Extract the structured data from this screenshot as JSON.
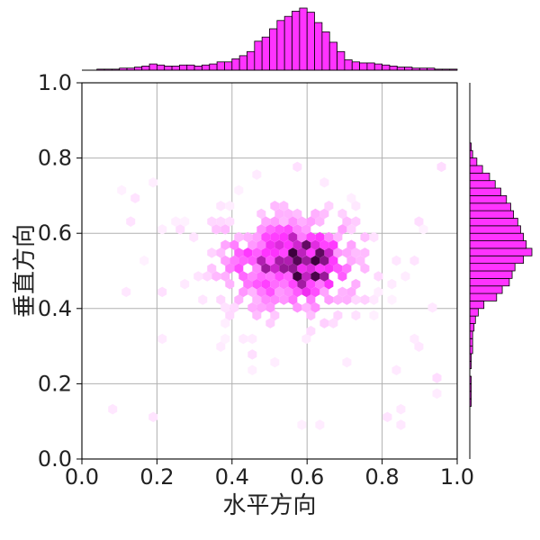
{
  "chart_data": {
    "type": "heatmap",
    "subtype": "hexbin joint plot with marginal histograms",
    "xlabel": "水平方向",
    "ylabel": "垂直方向",
    "xlim": [
      0.0,
      1.0
    ],
    "ylim": [
      0.0,
      1.0
    ],
    "x_ticks": [
      "0.0",
      "0.2",
      "0.4",
      "0.6",
      "0.8",
      "1.0"
    ],
    "y_ticks": [
      "0.0",
      "0.2",
      "0.4",
      "0.6",
      "0.8",
      "1.0"
    ],
    "grid": true,
    "color": "#ff33ff",
    "dark_color": "#3d003d",
    "hexbin": {
      "x_center": 0.55,
      "y_center": 0.52,
      "peak_x": 0.6,
      "peak_y": 0.53,
      "x_spread": 0.13,
      "y_spread": 0.09,
      "x_range": [
        0.07,
        0.97
      ],
      "y_range": [
        0.07,
        0.79
      ]
    },
    "top_histogram": {
      "bin_start": 0.0,
      "bin_width": 0.02,
      "counts": [
        0,
        0,
        1,
        1,
        1,
        2,
        2,
        3,
        4,
        6,
        5,
        4,
        4,
        5,
        5,
        4,
        5,
        6,
        8,
        8,
        11,
        14,
        18,
        28,
        32,
        40,
        48,
        52,
        57,
        60,
        56,
        46,
        37,
        27,
        18,
        10,
        8,
        7,
        7,
        6,
        5,
        4,
        3,
        3,
        2,
        2,
        2,
        1,
        1,
        1
      ]
    },
    "right_histogram": {
      "bin_start": 0.0,
      "bin_width": 0.02,
      "counts": [
        0,
        0,
        0,
        0,
        0,
        0,
        0,
        1,
        1,
        1,
        1,
        0,
        1,
        1,
        2,
        2,
        2,
        3,
        4,
        6,
        10,
        19,
        23,
        28,
        30,
        32,
        38,
        44,
        40,
        38,
        36,
        34,
        31,
        29,
        26,
        22,
        18,
        14,
        9,
        5,
        2,
        1,
        0,
        0,
        0,
        0,
        0,
        0,
        0,
        0
      ]
    }
  }
}
